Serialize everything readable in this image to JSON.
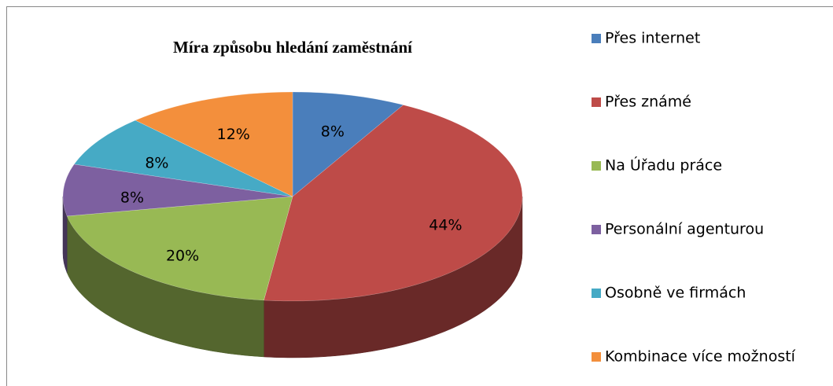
{
  "chart_data": {
    "type": "pie",
    "title": "Míra způsobu hledání zaměstnání",
    "categories": [
      "Přes internet",
      "Přes známé",
      "Na Úřadu práce",
      "Personální agenturou",
      "Osobně ve firmách",
      "Kombinace více možností"
    ],
    "values": [
      8,
      44,
      20,
      8,
      8,
      12
    ],
    "value_labels": [
      "8%",
      "44%",
      "20%",
      "8%",
      "8%",
      "12%"
    ],
    "colors": [
      "#4a7ebb",
      "#be4b48",
      "#98b954",
      "#7d60a0",
      "#46aac5",
      "#f38f3c"
    ]
  }
}
